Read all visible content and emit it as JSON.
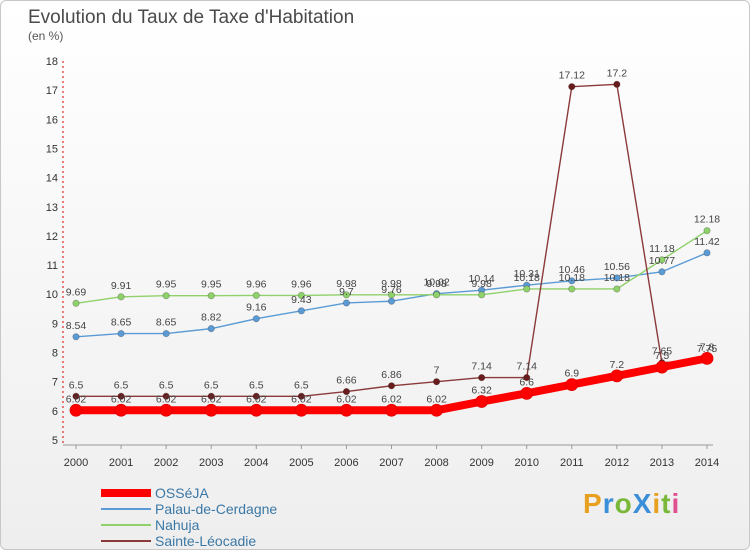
{
  "header": {
    "title": "Evolution du Taux de Taxe d'Habitation",
    "subtitle": "(en %)"
  },
  "logo": {
    "text": "ProXiti",
    "letters": [
      "P",
      "r",
      "o",
      "X",
      "i",
      "t",
      "i"
    ],
    "colors": [
      "#e8a020",
      "#3a8fd8",
      "#7ab83a",
      "#3a8fd8",
      "#e8a020",
      "#7ab83a",
      "#e05090"
    ]
  },
  "chart_data": {
    "type": "line",
    "x": [
      2000,
      2001,
      2002,
      2003,
      2004,
      2005,
      2006,
      2007,
      2008,
      2009,
      2010,
      2011,
      2012,
      2013,
      2014
    ],
    "ylim": [
      5,
      18
    ],
    "yticks": [
      5,
      6,
      7,
      8,
      9,
      10,
      11,
      12,
      13,
      14,
      15,
      16,
      17,
      18
    ],
    "grid": false,
    "legend_position": "bottom-left",
    "series": [
      {
        "name": "OSSéJA",
        "color": "#ff0000",
        "values": [
          6.02,
          6.02,
          6.02,
          6.02,
          6.02,
          6.02,
          6.02,
          6.02,
          6.02,
          6.32,
          6.6,
          6.9,
          7.2,
          7.5,
          7.8
        ],
        "labels": [
          "6.02",
          "6.02",
          "6.02",
          "6.02",
          "6.02",
          "6.02",
          "6.02",
          "6.02",
          "6.02",
          "6.32",
          "6.6",
          "6.9",
          "7.2",
          "7.5",
          "7.8"
        ]
      },
      {
        "name": "Palau-de-Cerdagne",
        "color": "#5b9bd5",
        "values": [
          8.54,
          8.65,
          8.65,
          8.82,
          9.16,
          9.43,
          9.7,
          9.76,
          10.02,
          10.14,
          10.31,
          10.46,
          10.56,
          10.77,
          11.42
        ],
        "labels": [
          "8.54",
          "8.65",
          "8.65",
          "8.82",
          "9.16",
          "9.43",
          "9.7",
          "9.76",
          "10.02",
          "10.14",
          "10.31",
          "10.46",
          "10.56",
          "10.77",
          "11.42"
        ]
      },
      {
        "name": "Nahuja",
        "color": "#8fd16a",
        "values": [
          9.69,
          9.91,
          9.95,
          9.95,
          9.96,
          9.96,
          9.98,
          9.98,
          9.98,
          9.98,
          10.18,
          10.18,
          10.18,
          11.18,
          12.18
        ],
        "labels": [
          "9.69",
          "9.91",
          "9.95",
          "9.95",
          "9.96",
          "9.96",
          "9.98",
          "9.98",
          "9.98",
          "9.98",
          "10.18",
          "10.18",
          "10.18",
          "11.18",
          "12.18"
        ]
      },
      {
        "name": "Sainte-Léocadie",
        "color": "#8b3a3a",
        "values": [
          6.5,
          6.5,
          6.5,
          6.5,
          6.5,
          6.5,
          6.66,
          6.86,
          7,
          7.14,
          7.14,
          17.12,
          17.2,
          7.65,
          7.75
        ],
        "labels": [
          "6.5",
          "6.5",
          "6.5",
          "6.5",
          "6.5",
          "6.5",
          "6.66",
          "6.86",
          "7",
          "7.14",
          "7.14",
          "17.12",
          "17.2",
          "7.65",
          "7.75"
        ]
      }
    ]
  }
}
